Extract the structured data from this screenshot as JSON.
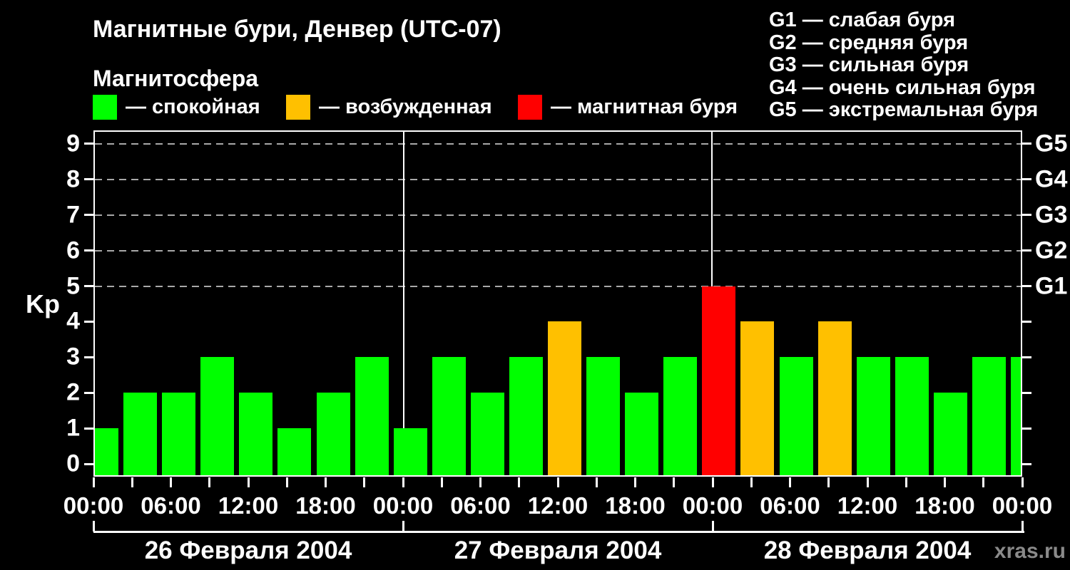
{
  "title": "Магнитные бури, Денвер (UTC-07)",
  "subtitle": "Магнитосфера",
  "legend": [
    {
      "name": "quiet",
      "label": "— спокойная",
      "color": "#00ff00"
    },
    {
      "name": "excited",
      "label": "— возбужденная",
      "color": "#ffc000"
    },
    {
      "name": "storm",
      "label": "— магнитная буря",
      "color": "#ff0000"
    }
  ],
  "g_scale": [
    "G1 — слабая буря",
    "G2 — средняя буря",
    "G3 — сильная буря",
    "G4 — очень сильная буря",
    "G5 — экстремальная буря"
  ],
  "watermark": "xras.ru",
  "chart_data": {
    "type": "bar",
    "title": "Магнитные бури, Денвер (UTC-07)",
    "ylabel": "Kp",
    "ylim": [
      0,
      9
    ],
    "y_ticks": [
      0,
      1,
      2,
      3,
      4,
      5,
      6,
      7,
      8,
      9
    ],
    "grid_levels": [
      5,
      6,
      7,
      8,
      9
    ],
    "right_axis_labels": [
      {
        "value": 5,
        "label": "G1"
      },
      {
        "value": 6,
        "label": "G2"
      },
      {
        "value": 7,
        "label": "G3"
      },
      {
        "value": 8,
        "label": "G4"
      },
      {
        "value": 9,
        "label": "G5"
      }
    ],
    "hours_per_bar": 3,
    "x_labels_cycle": [
      "00:00",
      "06:00",
      "12:00",
      "18:00"
    ],
    "x_final_label": "00:00",
    "days": [
      {
        "date": "26 Февраля 2004",
        "values": [
          1,
          2,
          2,
          3,
          2,
          1,
          2,
          3
        ]
      },
      {
        "date": "27 Февраля 2004",
        "values": [
          1,
          3,
          2,
          3,
          4,
          3,
          2,
          3
        ]
      },
      {
        "date": "28 Февраля 2004",
        "values": [
          5,
          4,
          3,
          4,
          3,
          3,
          2,
          3
        ]
      }
    ],
    "trailing_partial_value": 3,
    "color_rules": {
      "quiet_max": 3,
      "storm_min": 5
    },
    "bar_colors": {
      "quiet": "#00ff00",
      "excited": "#ffc000",
      "storm": "#ff0000"
    },
    "axis_color": "#ffffff",
    "grid_color": "#a8a8a8",
    "grid_style": "dashed",
    "legend_position": "top-left",
    "background": "#000000"
  }
}
